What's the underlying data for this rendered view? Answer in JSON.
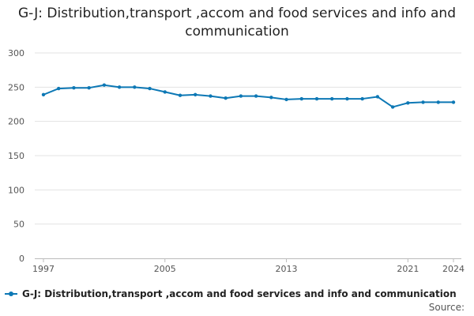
{
  "chart_data": {
    "type": "line",
    "title": "G-J: Distribution,transport ,accom and food services and info and communication",
    "x": [
      1997,
      1998,
      1999,
      2000,
      2001,
      2002,
      2003,
      2004,
      2005,
      2006,
      2007,
      2008,
      2009,
      2010,
      2011,
      2012,
      2013,
      2014,
      2015,
      2016,
      2017,
      2018,
      2019,
      2020,
      2021,
      2022,
      2023,
      2024
    ],
    "series": [
      {
        "name": "G-J: Distribution,transport ,accom and food services and info and communication",
        "values": [
          239,
          248,
          249,
          249,
          253,
          250,
          250,
          248,
          243,
          238,
          239,
          237,
          234,
          237,
          237,
          235,
          232,
          233,
          233,
          233,
          233,
          233,
          236,
          221,
          227,
          228,
          228,
          228
        ],
        "color": "#0d78b5"
      }
    ],
    "x_ticks": [
      1997,
      2005,
      2013,
      2021,
      2024
    ],
    "y_ticks": [
      0,
      50,
      100,
      150,
      200,
      250,
      300
    ],
    "ylim": [
      0,
      300
    ],
    "xlim": [
      1997,
      2024
    ],
    "xlabel": "",
    "ylabel": "",
    "grid": "horizontal",
    "legend": "bottom-left",
    "source_label": "Source:"
  }
}
